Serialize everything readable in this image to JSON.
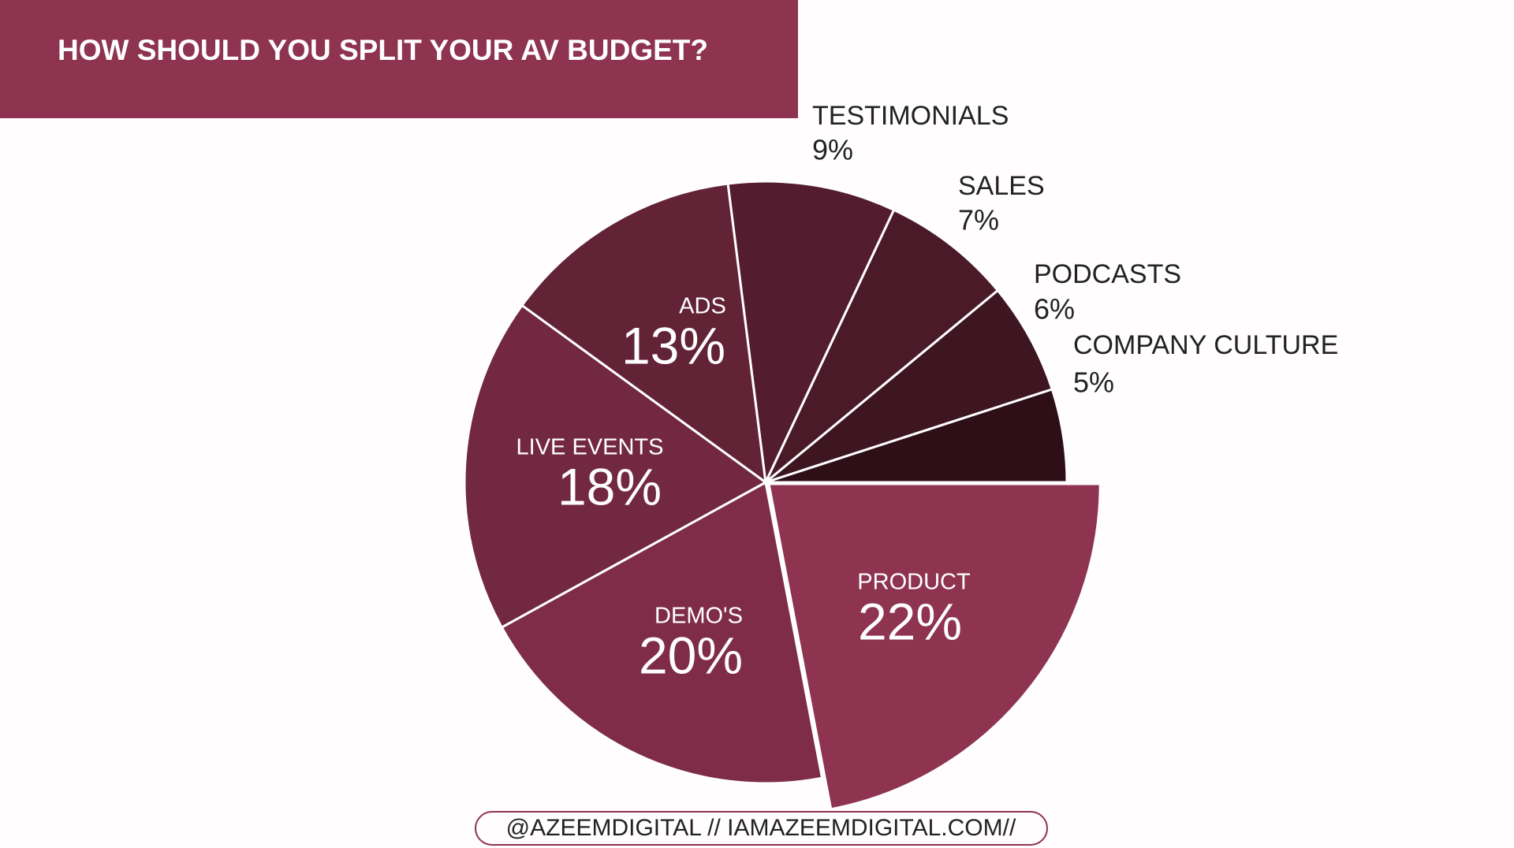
{
  "chart_data": {
    "type": "pie",
    "title": "HOW SHOULD YOU SPLIT YOUR AV BUDGET?",
    "categories": [
      "PRODUCT",
      "DEMO'S",
      "LIVE EVENTS",
      "ADS",
      "TESTIMONIALS",
      "SALES",
      "PODCASTS",
      "COMPANY CULTURE"
    ],
    "values": [
      22,
      20,
      18,
      13,
      9,
      7,
      6,
      5
    ],
    "value_labels": [
      "22%",
      "20%",
      "18%",
      "13%",
      "9%",
      "7%",
      "6%",
      "5%"
    ],
    "colors": [
      "#8e3350",
      "#7f2c49",
      "#722841",
      "#622337",
      "#541d2f",
      "#4a1a29",
      "#3e1622",
      "#2e0f18"
    ],
    "footer": "@AZEEMDIGITAL // IAMAZEEMDIGITAL.COM//"
  }
}
